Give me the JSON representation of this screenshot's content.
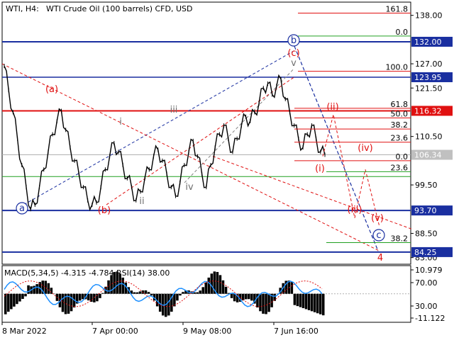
{
  "header": {
    "symbol": "WTI, H4:",
    "instrument": "WTI Crude Oil (100 barrels) CFD, USD"
  },
  "price_axis": {
    "ticks": [
      "138.00",
      "127.00",
      "121.50",
      "110.50",
      "99.50",
      "88.50",
      "83.00"
    ],
    "tags": [
      {
        "label": "132.00",
        "color": "#1a2fa0"
      },
      {
        "label": "123.95",
        "color": "#1a2fa0"
      },
      {
        "label": "116.32",
        "color": "#e01010"
      },
      {
        "label": "106.34",
        "color": "#c0c0c0"
      },
      {
        "label": "93.70",
        "color": "#1a2fa0"
      },
      {
        "label": "84.25",
        "color": "#1a2fa0"
      }
    ]
  },
  "time_axis": {
    "labels": [
      "8 Mar 2022",
      "7 Apr 00:00",
      "9 May 08:00",
      "7 Jun 16:00"
    ]
  },
  "fib_levels": [
    {
      "label": "161.8",
      "color": "#e01010"
    },
    {
      "label": "100.0",
      "color": "#e01010"
    },
    {
      "label": "61.8",
      "color": "#e01010"
    },
    {
      "label": "50.0",
      "color": "#e01010"
    },
    {
      "label": "38.2",
      "color": "#e01010"
    },
    {
      "label": "23.6",
      "color": "#e01010"
    },
    {
      "label": "0.0",
      "color": "#e01010"
    },
    {
      "label": "0.0",
      "color": "#20a020"
    },
    {
      "label": "23.6",
      "color": "#20a020"
    },
    {
      "label": "38.2",
      "color": "#20a020"
    }
  ],
  "wave_labels": {
    "a_circle": "a",
    "b_circle": "b",
    "c_circle": "c",
    "a_paren": "(a)",
    "b_paren": "(b)",
    "c_paren": "(c)",
    "iii_grey": "iii",
    "i_grey": "i",
    "ii_grey": "ii",
    "iv_grey": "iv",
    "v_grey": "v",
    "i_red": "(i)",
    "ii_red": "(ii)",
    "iii_red": "(iii)",
    "iv_red": "(iv)",
    "v_red": "(v)",
    "four": "4"
  },
  "indicator": {
    "title": "MACD(5,34,5) -4.315 -4.784 RSI(14) 38.00",
    "ticks": [
      "10.979",
      "70.00",
      "30.00",
      "-11.122"
    ]
  },
  "chart_data": {
    "type": "line",
    "title": "WTI, H4: WTI Crude Oil (100 barrels) CFD, USD",
    "xlabel": "",
    "ylabel": "",
    "ylim": [
      81.5,
      141
    ],
    "x_ticks": [
      "8 Mar 2022",
      "7 Apr 00:00",
      "9 May 08:00",
      "7 Jun 16:00"
    ],
    "series": [
      {
        "values": [
          126.5,
          121,
          116,
          110,
          104,
          99,
          94,
          95,
          99,
          103,
          107,
          111,
          114,
          116.3,
          112,
          108,
          105,
          102,
          99,
          96,
          95,
          95.5,
          99,
          103,
          106,
          109,
          107,
          104,
          101,
          99,
          96,
          98,
          101,
          103,
          106,
          107.5,
          105,
          102,
          99,
          97,
          100,
          104,
          107,
          109.5,
          106,
          102,
          99,
          104,
          108,
          111,
          113,
          110,
          107,
          110,
          113,
          115,
          114,
          116,
          118,
          121.5,
          122.5,
          120,
          122,
          123.5,
          119,
          116,
          113,
          110,
          108,
          111,
          113,
          110,
          107,
          106.34
        ]
      }
    ],
    "horizontal_levels": [
      132.0,
      123.95,
      116.32,
      106.34,
      93.7,
      84.25
    ],
    "fibonacci": {
      "labels": [
        "161.8",
        "100.0",
        "61.8",
        "50.0",
        "38.2",
        "23.6",
        "0.0",
        "0.0",
        "23.6",
        "38.2"
      ]
    },
    "macd_rsi": {
      "macd": -4.315,
      "signal": -4.784,
      "rsi": 38.0,
      "ticks": [
        "10.979",
        "70.00",
        "30.00",
        "-11.122"
      ]
    }
  }
}
